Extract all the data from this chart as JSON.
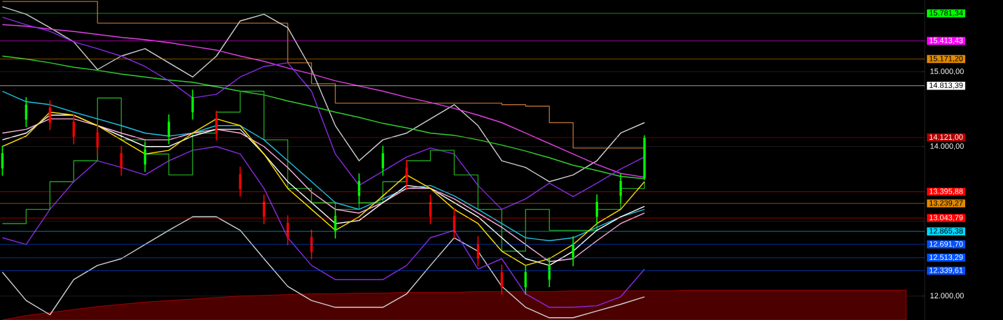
{
  "chart_data": {
    "type": "candlestick",
    "categories": [
      null,
      null,
      null,
      null,
      null,
      null,
      null,
      null,
      null,
      null,
      null,
      null,
      null,
      null,
      null,
      null,
      null,
      null,
      null,
      null,
      null,
      null,
      null,
      null,
      null,
      null,
      null,
      null,
      null,
      null,
      null,
      null,
      null,
      null,
      null,
      null,
      null,
      null,
      null
    ],
    "ohlc": [
      [
        13710,
        14010,
        13610,
        13910
      ],
      [
        14360,
        14660,
        14260,
        14560
      ],
      [
        14520,
        14620,
        14220,
        14320
      ],
      [
        14330,
        14430,
        14030,
        14130
      ],
      [
        14190,
        14290,
        13890,
        13990
      ],
      [
        13910,
        14010,
        13610,
        13710
      ],
      [
        13760,
        14060,
        13660,
        13960
      ],
      [
        14130,
        14430,
        14030,
        14330
      ],
      [
        14460,
        14760,
        14360,
        14660
      ],
      [
        14380,
        14480,
        14080,
        14180
      ],
      [
        13630,
        13730,
        13330,
        13430
      ],
      [
        13260,
        13360,
        12960,
        13060
      ],
      [
        12980,
        13080,
        12680,
        12780
      ],
      [
        12790,
        12890,
        12490,
        12590
      ],
      [
        12870,
        13170,
        12770,
        13070
      ],
      [
        13340,
        13640,
        13240,
        13540
      ],
      [
        13710,
        14010,
        13610,
        13910
      ],
      [
        13720,
        13820,
        13420,
        13520
      ],
      [
        13260,
        13360,
        12960,
        13060
      ],
      [
        13070,
        13170,
        12770,
        12870
      ],
      [
        12700,
        12800,
        12400,
        12500
      ],
      [
        12320,
        12420,
        12020,
        12120
      ],
      [
        12120,
        12420,
        12020,
        12320
      ],
      [
        12220,
        12520,
        12120,
        12420
      ],
      [
        12500,
        12800,
        12400,
        12700
      ],
      [
        13060,
        13360,
        12960,
        13260
      ],
      [
        13340,
        13640,
        13240,
        13540
      ],
      [
        13580,
        14150,
        13550,
        14121
      ],
      null,
      null,
      null,
      null,
      null,
      null,
      null,
      null,
      null,
      null,
      null
    ],
    "series": [
      {
        "type": "area",
        "color": "#c00000",
        "values": [
          11680,
          11740,
          11780,
          11820,
          11860,
          11890,
          11920,
          11940,
          11960,
          11980,
          12000,
          12010,
          12020,
          12030,
          12030,
          12040,
          12040,
          12050,
          12050,
          12050,
          12060,
          12060,
          12060,
          12060,
          12070,
          12070,
          12070,
          12070,
          12070,
          12080,
          12080,
          12080,
          12080,
          12080,
          12080,
          12080,
          12080,
          12080,
          12080
        ]
      },
      {
        "type": "step",
        "color": "#b06a30",
        "values": [
          15940,
          15940,
          15940,
          15940,
          15650,
          15650,
          15650,
          15650,
          15650,
          15650,
          15650,
          15650,
          15120,
          14840,
          14580,
          14580,
          14580,
          14580,
          14580,
          14580,
          14580,
          14560,
          14540,
          14320,
          13980,
          13980,
          13980,
          13980,
          null,
          null,
          null,
          null,
          null,
          null,
          null,
          null,
          null,
          null,
          null
        ]
      },
      {
        "type": "line",
        "color": "#d0d0d0",
        "values": [
          15870,
          15770,
          15590,
          15400,
          15030,
          15210,
          15310,
          15120,
          14930,
          15210,
          15680,
          15770,
          15590,
          15030,
          14280,
          13810,
          14090,
          14180,
          14370,
          14560,
          14280,
          13810,
          13720,
          13530,
          13620,
          13810,
          14180,
          14320,
          null,
          null,
          null,
          null,
          null,
          null,
          null,
          null,
          null,
          null,
          null
        ]
      },
      {
        "type": "line",
        "color": "#d0d0d0",
        "values": [
          12320,
          11940,
          11750,
          12220,
          12410,
          12500,
          12690,
          12880,
          13060,
          13060,
          12880,
          12500,
          12130,
          11940,
          11850,
          11850,
          11850,
          12030,
          12410,
          12780,
          12600,
          12130,
          11850,
          11710,
          11710,
          11800,
          11890,
          11990,
          null,
          null,
          null,
          null,
          null,
          null,
          null,
          null,
          null,
          null,
          null
        ]
      },
      {
        "type": "line",
        "color": "#e040e0",
        "values": [
          15630,
          15610,
          15570,
          15540,
          15500,
          15460,
          15430,
          15390,
          15340,
          15290,
          15210,
          15140,
          15050,
          14970,
          14880,
          14810,
          14740,
          14660,
          14590,
          14510,
          14420,
          14320,
          14180,
          14040,
          13900,
          13760,
          13640,
          13590,
          null,
          null,
          null,
          null,
          null,
          null,
          null,
          null,
          null,
          null,
          null
        ]
      },
      {
        "type": "line",
        "color": "#30d030",
        "values": [
          15210,
          15170,
          15120,
          15060,
          15020,
          14970,
          14930,
          14890,
          14860,
          14800,
          14740,
          14690,
          14610,
          14540,
          14460,
          14390,
          14310,
          14250,
          14180,
          14150,
          14090,
          14020,
          13940,
          13850,
          13750,
          13680,
          13600,
          13570,
          null,
          null,
          null,
          null,
          null,
          null,
          null,
          null,
          null,
          null,
          null
        ]
      },
      {
        "type": "line",
        "color": "#8a2be2",
        "values": [
          15730,
          15630,
          15540,
          15400,
          15310,
          15210,
          15070,
          14880,
          14650,
          14700,
          14930,
          15070,
          15120,
          14740,
          13900,
          13480,
          13670,
          13860,
          13980,
          13900,
          13480,
          13160,
          13300,
          13510,
          13330,
          13510,
          13700,
          13860,
          null,
          null,
          null,
          null,
          null,
          null,
          null,
          null,
          null,
          null,
          null
        ]
      },
      {
        "type": "line",
        "color": "#8a2be2",
        "values": [
          12780,
          12690,
          13160,
          13530,
          13810,
          13720,
          13620,
          13810,
          13950,
          14000,
          13900,
          13440,
          12780,
          12410,
          12220,
          12220,
          12220,
          12410,
          12780,
          12880,
          12360,
          12500,
          12030,
          11850,
          11850,
          11870,
          11990,
          12360,
          null,
          null,
          null,
          null,
          null,
          null,
          null,
          null,
          null,
          null,
          null
        ]
      },
      {
        "type": "step",
        "color": "#20a020",
        "values": [
          12970,
          13160,
          13530,
          13810,
          14650,
          14090,
          13900,
          13620,
          14180,
          14460,
          14740,
          14090,
          13440,
          13250,
          13160,
          13250,
          13530,
          13810,
          13950,
          13620,
          13160,
          12600,
          13160,
          12880,
          12880,
          13160,
          13440,
          13530,
          null,
          null,
          null,
          null,
          null,
          null,
          null,
          null,
          null,
          null,
          null
        ]
      },
      {
        "type": "line",
        "color": "#20c0e0",
        "values": [
          14740,
          14600,
          14560,
          14460,
          14370,
          14280,
          14180,
          14140,
          14180,
          14280,
          14280,
          14090,
          13810,
          13530,
          13250,
          13160,
          13300,
          13440,
          13480,
          13340,
          13160,
          12970,
          12780,
          12740,
          12780,
          12920,
          13060,
          13160,
          null,
          null,
          null,
          null,
          null,
          null,
          null,
          null,
          null,
          null,
          null
        ]
      },
      {
        "type": "line",
        "color": "#ffb0e0",
        "values": [
          14180,
          14230,
          14370,
          14370,
          14280,
          14180,
          14090,
          14090,
          14180,
          14230,
          14180,
          14000,
          13720,
          13390,
          13160,
          13110,
          13250,
          13440,
          13440,
          13300,
          13110,
          12920,
          12690,
          12460,
          12500,
          12740,
          12970,
          13110,
          null,
          null,
          null,
          null,
          null,
          null,
          null,
          null,
          null,
          null,
          null
        ]
      },
      {
        "type": "line",
        "color": "#ffffff",
        "values": [
          14090,
          14180,
          14420,
          14420,
          14280,
          14140,
          14000,
          14000,
          14140,
          14230,
          14230,
          13900,
          13530,
          13250,
          12970,
          13010,
          13250,
          13480,
          13440,
          13250,
          13060,
          12780,
          12500,
          12410,
          12600,
          12880,
          13060,
          13200,
          null,
          null,
          null,
          null,
          null,
          null,
          null,
          null,
          null,
          null,
          null
        ]
      },
      {
        "type": "line",
        "color": "#ffe000",
        "values": [
          14000,
          14140,
          14460,
          14420,
          14280,
          14090,
          13900,
          13950,
          14180,
          14370,
          14280,
          13900,
          13440,
          13160,
          12880,
          13060,
          13340,
          13620,
          13440,
          13160,
          12970,
          12600,
          12410,
          12500,
          12690,
          12970,
          13160,
          13530,
          null,
          null,
          null,
          null,
          null,
          null,
          null,
          null,
          null,
          null,
          null
        ]
      }
    ],
    "ylim": [
      11680,
      15960
    ],
    "yticks": [
      {
        "value": 12000,
        "label": "12.000,00"
      },
      {
        "value": 13000,
        "label": null
      },
      {
        "value": 14000,
        "label": "14.000,00"
      },
      {
        "value": 15000,
        "label": "15.000,00"
      }
    ],
    "grid": "y",
    "tick_labels": "y",
    "ref_lines": [
      {
        "axis": "y",
        "value": 15781.34,
        "label": "15.781,34",
        "color": "#00ff00"
      },
      {
        "axis": "y",
        "value": 15413.43,
        "label": "15.413,43",
        "color": "#ff00ff"
      },
      {
        "axis": "y",
        "value": 15171.2,
        "label": "15.171,20",
        "color": "#e08a00"
      },
      {
        "axis": "y",
        "value": 14813.39,
        "label": "14.813,39",
        "color": "#ffffff"
      },
      {
        "axis": "y",
        "value": 14121.0,
        "label": "14.121,00",
        "color": "#b00000"
      },
      {
        "axis": "y",
        "value": 13395.88,
        "label": "13.395,88",
        "color": "#ff0000"
      },
      {
        "axis": "y",
        "value": 13239.27,
        "label": "13.239,27",
        "color": "#e08a00"
      },
      {
        "axis": "y",
        "value": 13043.79,
        "label": "13.043,79",
        "color": "#ff0000"
      },
      {
        "axis": "y",
        "value": 12865.38,
        "label": "12.865,38",
        "color": "#00d8ff"
      },
      {
        "axis": "y",
        "value": 12691.7,
        "label": "12.691,70",
        "color": "#0050ff"
      },
      {
        "axis": "y",
        "value": 12513.29,
        "label": "12.513,29",
        "color": "#0050ff"
      },
      {
        "axis": "y",
        "value": 12339.61,
        "label": "12.339,61",
        "color": "#0050ff"
      }
    ]
  }
}
